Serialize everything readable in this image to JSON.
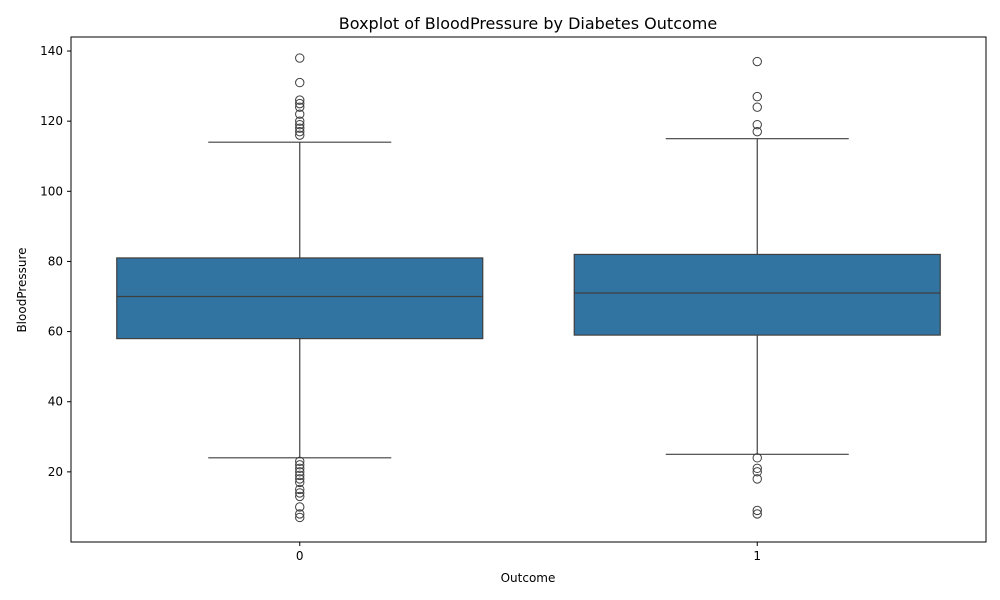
{
  "chart_data": {
    "type": "boxplot",
    "title": "Boxplot of BloodPressure by Diabetes Outcome",
    "xlabel": "Outcome",
    "ylabel": "BloodPressure",
    "categories": [
      "0",
      "1"
    ],
    "ylim": [
      0,
      144
    ],
    "yticks": [
      20,
      40,
      60,
      80,
      100,
      120,
      140
    ],
    "grid": false,
    "box_color": "#3274a1",
    "line_color": "#3f3f3f",
    "groups": [
      {
        "category": "0",
        "whisker_low": 24,
        "q1": 58,
        "median": 70,
        "q3": 81,
        "whisker_high": 114,
        "outliers": [
          138,
          131,
          126,
          125,
          124,
          122,
          120,
          119,
          118,
          117,
          116,
          23,
          22,
          21,
          20,
          19,
          18,
          17,
          15,
          14,
          13,
          10,
          8,
          7
        ]
      },
      {
        "category": "1",
        "whisker_low": 25,
        "q1": 59,
        "median": 71,
        "q3": 82,
        "whisker_high": 115,
        "outliers": [
          137,
          127,
          124,
          119,
          117,
          24,
          21,
          20,
          18,
          9,
          8
        ]
      }
    ]
  }
}
